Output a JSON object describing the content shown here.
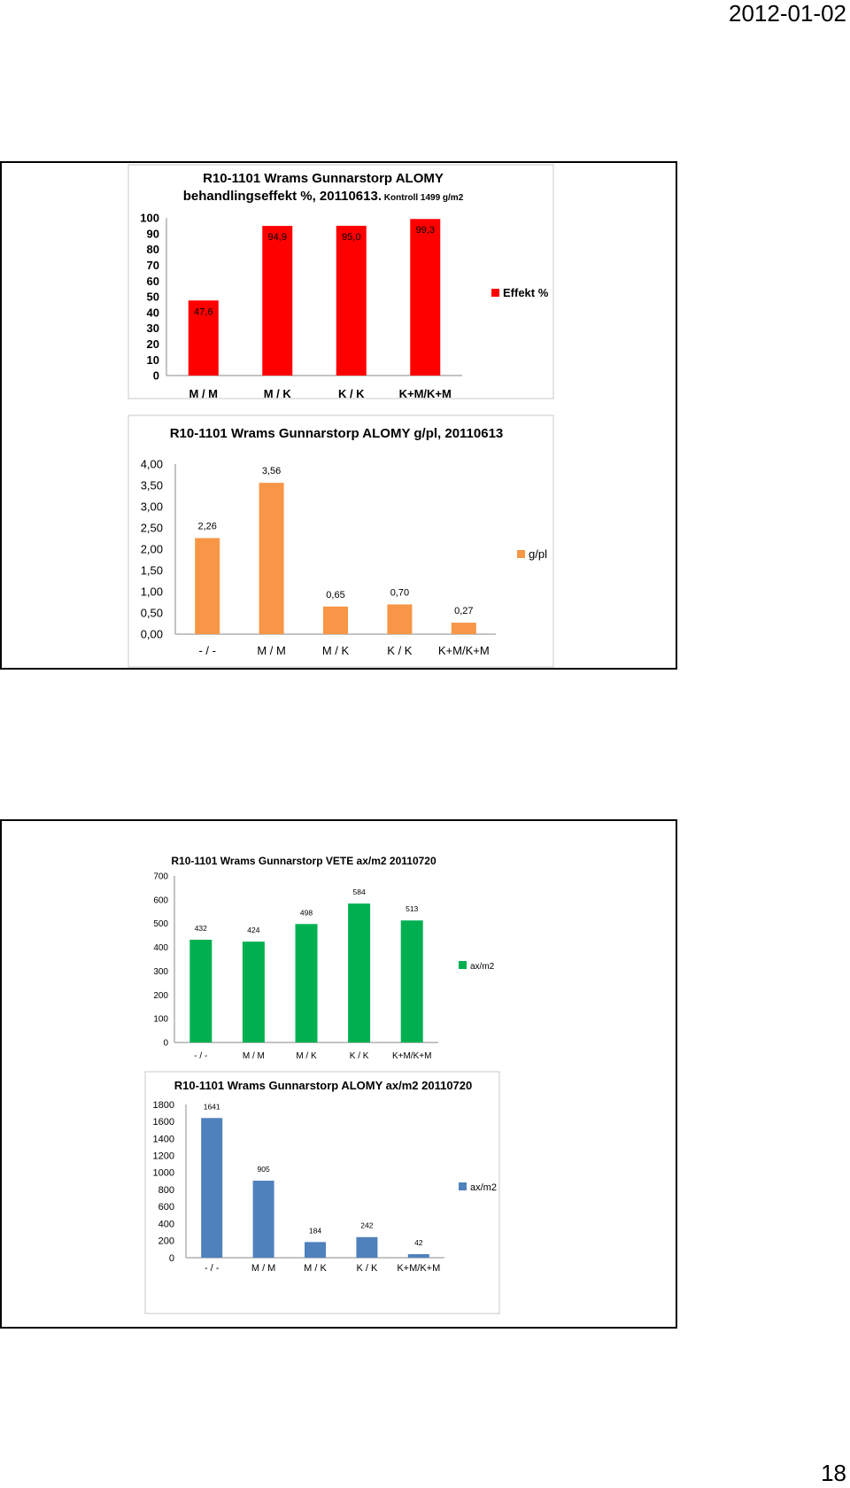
{
  "page": {
    "date": "2012-01-02",
    "number": "18"
  },
  "chart_data": [
    {
      "type": "bar",
      "title_lines": [
        "R10-1101 Wrams Gunnarstorp  ALOMY",
        "behandlingseffekt %, 20110613."
      ],
      "title_suffix": "Kontroll 1499 g/m2",
      "categories": [
        "M / M",
        "M / K",
        "K / K",
        "K+M/K+M"
      ],
      "series": [
        {
          "name": "Effekt %",
          "values": [
            47.6,
            94.9,
            95.0,
            99.3
          ],
          "labels": [
            "47,6",
            "94,9",
            "95,0",
            "99,3"
          ]
        }
      ],
      "color": "#ff0000",
      "ylim": [
        0,
        100
      ],
      "yticks": [
        "0",
        "10",
        "20",
        "30",
        "40",
        "50",
        "60",
        "70",
        "80",
        "90",
        "100"
      ],
      "grid": false,
      "legend": "right"
    },
    {
      "type": "bar",
      "title": "R10-1101 Wrams Gunnarstorp  ALOMY g/pl, 20110613",
      "categories": [
        "- / -",
        "M / M",
        "M / K",
        "K / K",
        "K+M/K+M"
      ],
      "series": [
        {
          "name": "g/pl",
          "values": [
            2.26,
            3.56,
            0.65,
            0.7,
            0.27
          ],
          "labels": [
            "2,26",
            "3,56",
            "0,65",
            "0,70",
            "0,27"
          ]
        }
      ],
      "color": "#f79646",
      "ylim": [
        0,
        4
      ],
      "yticks": [
        "0,00",
        "0,50",
        "1,00",
        "1,50",
        "2,00",
        "2,50",
        "3,00",
        "3,50",
        "4,00"
      ],
      "grid": false,
      "legend": "right"
    },
    {
      "type": "bar",
      "title": "R10-1101 Wrams Gunnarstorp VETE ax/m2 20110720",
      "categories": [
        "- / -",
        "M / M",
        "M / K",
        "K / K",
        "K+M/K+M"
      ],
      "series": [
        {
          "name": "ax/m2",
          "values": [
            432,
            424,
            498,
            584,
            513
          ],
          "labels": [
            "432",
            "424",
            "498",
            "584",
            "513"
          ]
        }
      ],
      "color": "#00b050",
      "ylim": [
        0,
        700
      ],
      "yticks": [
        "0",
        "100",
        "200",
        "300",
        "400",
        "500",
        "600",
        "700"
      ],
      "grid": false,
      "legend": "right"
    },
    {
      "type": "bar",
      "title": "R10-1101 Wrams Gunnarstorp ALOMY ax/m2 20110720",
      "categories": [
        "- / -",
        "M / M",
        "M / K",
        "K / K",
        "K+M/K+M"
      ],
      "series": [
        {
          "name": "ax/m2",
          "values": [
            1641,
            905,
            184,
            242,
            42
          ],
          "labels": [
            "1641",
            "905",
            "184",
            "242",
            "42"
          ]
        }
      ],
      "color": "#4f81bd",
      "ylim": [
        0,
        1800
      ],
      "yticks": [
        "0",
        "200",
        "400",
        "600",
        "800",
        "1000",
        "1200",
        "1400",
        "1600",
        "1800"
      ],
      "grid": false,
      "legend": "right"
    }
  ]
}
